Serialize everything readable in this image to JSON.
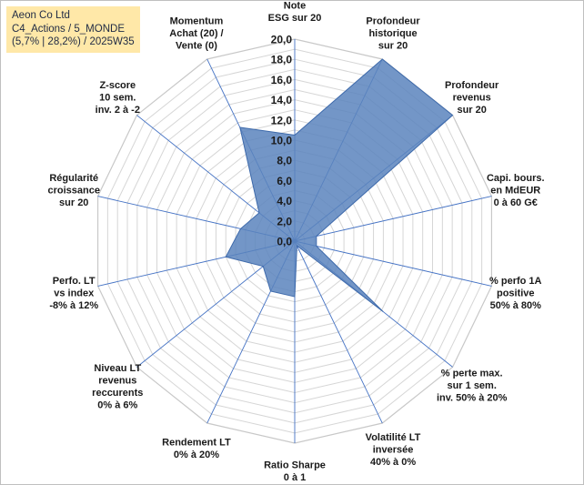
{
  "title_box": {
    "line1": "Aeon Co Ltd",
    "line2": "C4_Actions / 5_MONDE",
    "line3": "(5,7% | 28,2%) / 2025W35"
  },
  "chart_data": {
    "type": "radar",
    "rmin": 0,
    "rmax": 20,
    "tick_labels": [
      "0,0",
      "2,0",
      "4,0",
      "6,0",
      "8,0",
      "10,0",
      "12,0",
      "14,0",
      "16,0",
      "18,0",
      "20,0"
    ],
    "grid": true,
    "categories": [
      [
        "Note",
        "ESG sur 20"
      ],
      [
        "Profondeur",
        "historique",
        "sur 20"
      ],
      [
        "Profondeur",
        "revenus",
        "sur 20"
      ],
      [
        "Capi. bours.",
        "en MdEUR",
        "0 à 60 G€"
      ],
      [
        "% perfo 1A",
        "positive",
        "50% à 80%"
      ],
      [
        "% perte max.",
        "sur 1 sem.",
        "inv. 50% à 20%"
      ],
      [
        "Volatilité LT",
        "inversée",
        "40% à 0%"
      ],
      [
        "Ratio Sharpe",
        "0 à 1"
      ],
      [
        "Rendement LT",
        "0% à 20%"
      ],
      [
        "Niveau LT",
        "revenus",
        "reccurents",
        "0% à 6%"
      ],
      [
        "Perfo. LT",
        "vs index",
        "-8% à 12%"
      ],
      [
        "Régularité",
        "croissance",
        "sur 20"
      ],
      [
        "Z-score",
        "10 sem.",
        "inv. 2 à -2"
      ],
      [
        "Momentum",
        "Achat (20) /",
        "Vente (0)"
      ]
    ],
    "values": [
      10.5,
      20,
      20,
      2.2,
      2.2,
      11.2,
      0.5,
      5.5,
      5.5,
      4.0,
      7.0,
      5.5,
      4.5,
      12.5
    ],
    "colors": {
      "fill": "#5b84bd",
      "stroke": "#3e6aab",
      "grid": "#d6d6d6",
      "spoke": "#4472c4"
    }
  }
}
